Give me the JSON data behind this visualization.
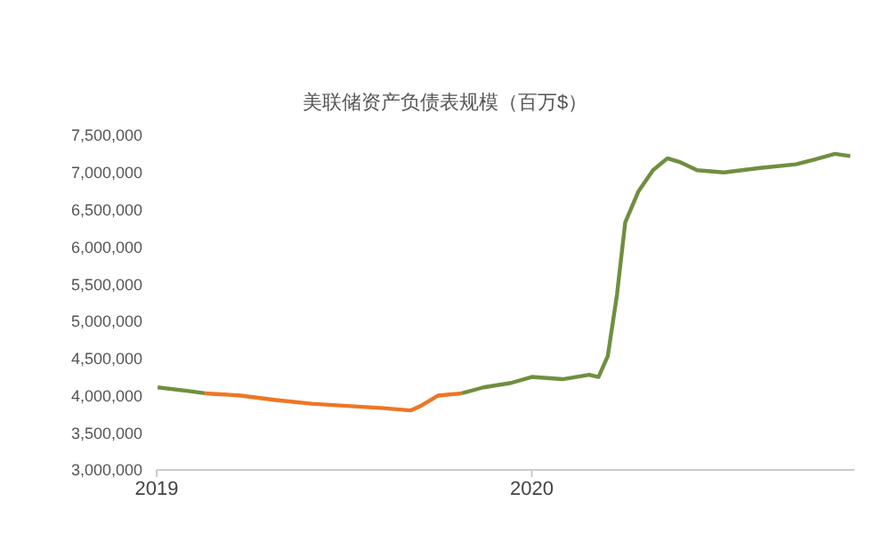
{
  "chart_data": {
    "type": "line",
    "title": "美联储资产负债表规模（百万$）",
    "series": [
      {
        "color": "#6f8f3f",
        "x": [
          "2019-01-02",
          "2019-02-01",
          "2019-02-17"
        ],
        "values": [
          4110000,
          4060000,
          4030000
        ]
      },
      {
        "color": "#ee7623",
        "x": [
          "2019-02-17",
          "2019-03-24",
          "2019-04-27",
          "2019-06-01",
          "2019-07-06",
          "2019-08-10",
          "2019-09-05",
          "2019-09-15",
          "2019-10-02",
          "2019-10-25"
        ],
        "values": [
          4030000,
          4000000,
          3940000,
          3890000,
          3860000,
          3830000,
          3800000,
          3860000,
          4000000,
          4030000
        ]
      },
      {
        "color": "#6f8f3f",
        "x": [
          "2019-10-25",
          "2019-11-15",
          "2019-12-12",
          "2020-01-01",
          "2020-01-31",
          "2020-02-26",
          "2020-03-06",
          "2020-03-15",
          "2020-03-24",
          "2020-04-01",
          "2020-04-14",
          "2020-04-28",
          "2020-05-12",
          "2020-05-24",
          "2020-06-10",
          "2020-07-06",
          "2020-08-10",
          "2020-09-14",
          "2020-10-01",
          "2020-10-22",
          "2020-11-06"
        ],
        "values": [
          4030000,
          4110000,
          4170000,
          4250000,
          4220000,
          4280000,
          4250000,
          4530000,
          5360000,
          6330000,
          6750000,
          7030000,
          7190000,
          7140000,
          7030000,
          7000000,
          7060000,
          7110000,
          7170000,
          7250000,
          7220000
        ]
      }
    ],
    "xlim": [
      "2019-01-01",
      "2020-11-10"
    ],
    "xticks": [
      "2019",
      "2020"
    ],
    "ylim": [
      3000000,
      7500000
    ],
    "yticks": [
      {
        "value": 3000000,
        "label": "3,000,000"
      },
      {
        "value": 3500000,
        "label": "3,500,000"
      },
      {
        "value": 4000000,
        "label": "4,000,000"
      },
      {
        "value": 4500000,
        "label": "4,500,000"
      },
      {
        "value": 5000000,
        "label": "5,000,000"
      },
      {
        "value": 5500000,
        "label": "5,500,000"
      },
      {
        "value": 6000000,
        "label": "6,000,000"
      },
      {
        "value": 6500000,
        "label": "6,500,000"
      },
      {
        "value": 7000000,
        "label": "7,000,000"
      },
      {
        "value": 7500000,
        "label": "7,500,000"
      }
    ],
    "marker": "none",
    "line_style": "solid"
  }
}
